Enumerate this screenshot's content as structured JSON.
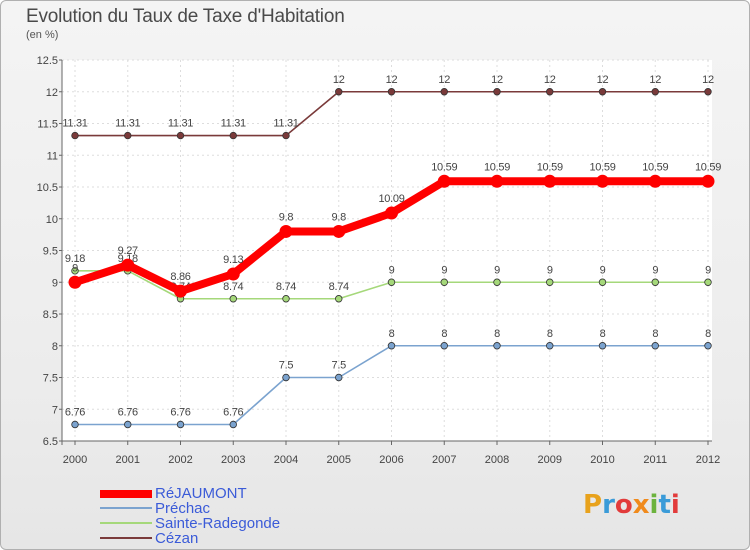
{
  "header": {
    "title": "Evolution du Taux de Taxe d'Habitation",
    "subtitle": "(en %)"
  },
  "chart_data": {
    "type": "line",
    "title": "Evolution du Taux de Taxe d'Habitation",
    "ylabel": "(en %)",
    "xlabel": "",
    "ylim": [
      6.5,
      12.5
    ],
    "yticks": [
      "6.5",
      "7",
      "7.5",
      "8",
      "8.5",
      "9",
      "9.5",
      "10",
      "10.5",
      "11",
      "11.5",
      "12",
      "12.5"
    ],
    "grid": true,
    "categories": [
      "2000",
      "2001",
      "2002",
      "2003",
      "2004",
      "2005",
      "2006",
      "2007",
      "2008",
      "2009",
      "2010",
      "2011",
      "2012"
    ],
    "series": [
      {
        "name": "Cézan",
        "color": "#7a3a3a",
        "values": [
          11.31,
          11.31,
          11.31,
          11.31,
          11.31,
          12,
          12,
          12,
          12,
          12,
          12,
          12,
          12
        ],
        "labels": [
          "11.31",
          "11.31",
          "11.31",
          "11.31",
          "11.31",
          "12",
          "12",
          "12",
          "12",
          "12",
          "12",
          "12",
          "12"
        ]
      },
      {
        "name": "Préchac",
        "color": "#7ba3cf",
        "values": [
          6.76,
          6.76,
          6.76,
          6.76,
          7.5,
          7.5,
          8,
          8,
          8,
          8,
          8,
          8,
          8
        ],
        "labels": [
          "6.76",
          "6.76",
          "6.76",
          "6.76",
          "7.5",
          "7.5",
          "8",
          "8",
          "8",
          "8",
          "8",
          "8",
          "8"
        ]
      },
      {
        "name": "Sainte-Radegonde",
        "color": "#a5d87a",
        "values": [
          9.18,
          9.18,
          8.74,
          8.74,
          8.74,
          8.74,
          9,
          9,
          9,
          9,
          9,
          9,
          9
        ],
        "labels": [
          "9.18",
          "9.18",
          "8.74",
          "8.74",
          "8.74",
          "8.74",
          "9",
          "9",
          "9",
          "9",
          "9",
          "9",
          "9"
        ]
      },
      {
        "name": "RéJAUMONT",
        "color": "#ff0000",
        "values": [
          9,
          9.27,
          8.86,
          9.13,
          9.8,
          9.8,
          10.09,
          10.59,
          10.59,
          10.59,
          10.59,
          10.59,
          10.59
        ],
        "labels": [
          "9",
          "9.27",
          "8.86",
          "9.13",
          "9.8",
          "9.8",
          "10.09",
          "10.59",
          "10.59",
          "10.59",
          "10.59",
          "10.59",
          "10.59"
        ]
      }
    ]
  },
  "legend": [
    {
      "label": "RéJAUMONT",
      "color": "#ff0000"
    },
    {
      "label": "Préchac",
      "color": "#7ba3cf"
    },
    {
      "label": "Sainte-Radegonde",
      "color": "#a5d87a"
    },
    {
      "label": "Cézan",
      "color": "#7a3a3a"
    }
  ],
  "logo": {
    "text": "Proxiti"
  }
}
